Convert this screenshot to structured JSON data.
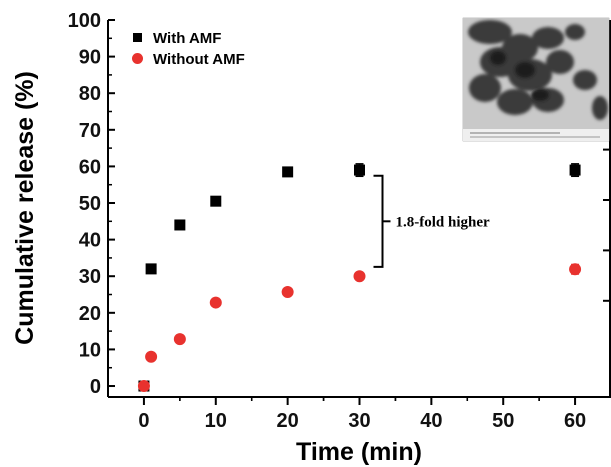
{
  "chart_data": {
    "type": "scatter",
    "xlabel": "Time (min)",
    "ylabel": "Cumulative release (%)",
    "xlim": [
      -5,
      65
    ],
    "ylim": [
      -3,
      100
    ],
    "xticks": [
      0,
      10,
      20,
      30,
      40,
      50,
      60
    ],
    "yticks": [
      0,
      10,
      20,
      30,
      40,
      50,
      60,
      70,
      80,
      90,
      100
    ],
    "legend_position": "top-left",
    "series": [
      {
        "name": "With AMF",
        "color": "#000000",
        "marker": "square",
        "x": [
          0,
          1,
          5,
          10,
          20,
          30,
          60
        ],
        "y": [
          0,
          32,
          44,
          50.5,
          58.5,
          59,
          59
        ],
        "error": [
          0,
          1,
          0.6,
          1.1,
          0.6,
          1.7,
          1.7
        ]
      },
      {
        "name": "Without AMF",
        "color": "#e8322e",
        "marker": "circle",
        "x": [
          0,
          1,
          5,
          10,
          20,
          30,
          60
        ],
        "y": [
          0,
          8,
          12.8,
          22.8,
          25.7,
          30,
          31.9
        ],
        "error": [
          0,
          0.4,
          0.5,
          0.6,
          0.5,
          0.5,
          1.3
        ]
      }
    ],
    "annotation": {
      "text": "1.8-fold higher",
      "x": 30,
      "y_low": 32,
      "y_high": 58
    },
    "inset": "microscopy image"
  }
}
